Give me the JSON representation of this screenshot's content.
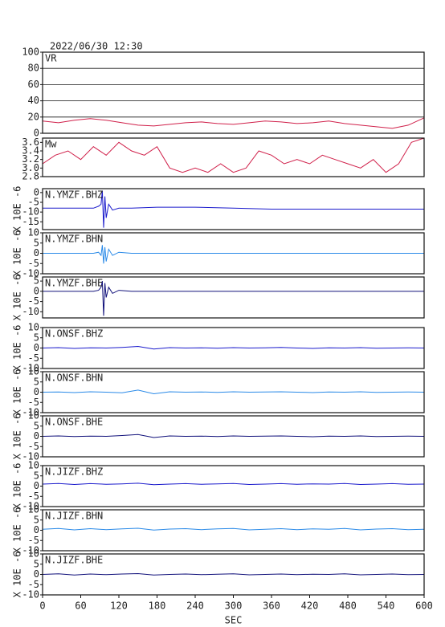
{
  "chart_data": [
    {
      "type": "line",
      "title": "2022/06/30 12:30",
      "xlim": [
        0,
        600
      ],
      "ylim": [
        0,
        100
      ],
      "yticks": [
        0,
        20,
        40,
        60,
        80,
        100
      ],
      "grid": true,
      "x": [
        0,
        25,
        50,
        75,
        100,
        125,
        150,
        175,
        200,
        225,
        250,
        275,
        300,
        325,
        350,
        375,
        400,
        425,
        450,
        475,
        500,
        525,
        550,
        575,
        600
      ],
      "series": [
        {
          "name": "VR",
          "color": "#d0204a",
          "values": [
            15,
            13,
            16,
            18,
            16,
            13,
            10,
            9,
            11,
            13,
            14,
            12,
            11,
            13,
            15,
            14,
            12,
            13,
            15,
            12,
            10,
            8,
            6,
            10,
            19
          ]
        }
      ]
    },
    {
      "type": "line",
      "xlim": [
        0,
        600
      ],
      "ylim": [
        2.8,
        3.7
      ],
      "yticks": [
        2.8,
        {
          "value": 3,
          "label": "3.0"
        },
        3.2,
        3.4,
        3.6
      ],
      "x": [
        0,
        20,
        40,
        60,
        80,
        100,
        120,
        140,
        160,
        180,
        200,
        220,
        240,
        260,
        280,
        300,
        320,
        340,
        360,
        380,
        400,
        420,
        440,
        460,
        480,
        500,
        520,
        540,
        560,
        580,
        600
      ],
      "series": [
        {
          "name": "Mw",
          "color": "#d0204a",
          "values": [
            3.1,
            3.3,
            3.4,
            3.2,
            3.5,
            3.3,
            3.6,
            3.4,
            3.3,
            3.5,
            3.0,
            2.9,
            3.0,
            2.9,
            3.1,
            2.9,
            3.0,
            3.4,
            3.3,
            3.1,
            3.2,
            3.1,
            3.3,
            3.2,
            3.1,
            3.0,
            3.2,
            2.9,
            3.1,
            3.6,
            3.7
          ]
        }
      ]
    },
    {
      "type": "line",
      "xlim": [
        0,
        600
      ],
      "ylim": [
        -19,
        2
      ],
      "yticks": [
        0,
        -5,
        -10,
        -15
      ],
      "ylabel": "X 10E -6",
      "x": [
        0,
        30,
        60,
        80,
        88,
        92,
        94,
        96,
        98,
        100,
        104,
        110,
        120,
        140,
        180,
        240,
        300,
        360,
        420,
        480,
        540,
        600
      ],
      "series": [
        {
          "name": "N.YMZF.BHZ",
          "color": "#1a1acc",
          "values": [
            -8,
            -8,
            -8,
            -8,
            -7,
            -6,
            1,
            -18,
            -2,
            -13,
            -6,
            -9,
            -8,
            -8,
            -7.5,
            -7.5,
            -8,
            -8.5,
            -8.5,
            -8.5,
            -8.5,
            -8.5
          ]
        }
      ]
    },
    {
      "type": "line",
      "xlim": [
        0,
        600
      ],
      "ylim": [
        -10,
        10
      ],
      "yticks": [
        10,
        5,
        0,
        -5,
        -10
      ],
      "ylabel": "X 10E -6",
      "x": [
        0,
        30,
        60,
        80,
        88,
        92,
        94,
        96,
        98,
        100,
        104,
        110,
        120,
        140,
        180,
        240,
        300,
        360,
        420,
        480,
        540,
        600
      ],
      "series": [
        {
          "name": "N.YMZF.BHN",
          "color": "#2a8ae8",
          "values": [
            0,
            0,
            0,
            0,
            0.5,
            -1,
            4,
            -5,
            3,
            -4,
            2,
            -1,
            0.5,
            0,
            0,
            0,
            0,
            0,
            0,
            0,
            0,
            0
          ]
        }
      ]
    },
    {
      "type": "line",
      "xlim": [
        0,
        600
      ],
      "ylim": [
        -13,
        7
      ],
      "yticks": [
        5,
        0,
        -5,
        -10
      ],
      "ylabel": "X 10E -6",
      "x": [
        0,
        30,
        60,
        80,
        88,
        92,
        94,
        96,
        98,
        100,
        104,
        110,
        120,
        140,
        180,
        240,
        300,
        360,
        420,
        480,
        540,
        600
      ],
      "series": [
        {
          "name": "N.YMZF.BHE",
          "color": "#10107a",
          "values": [
            0,
            0,
            0,
            0,
            0.5,
            2,
            5,
            -12,
            4,
            -3,
            2,
            -1,
            0.5,
            0,
            0,
            0,
            0,
            0,
            0,
            0,
            0,
            0
          ]
        }
      ]
    },
    {
      "type": "line",
      "xlim": [
        0,
        600
      ],
      "ylim": [
        -10,
        10
      ],
      "yticks": [
        10,
        5,
        0,
        -5,
        -10
      ],
      "ylabel": "X 10E -6",
      "x": [
        0,
        25,
        50,
        75,
        100,
        125,
        150,
        175,
        200,
        225,
        250,
        275,
        300,
        325,
        350,
        375,
        400,
        425,
        450,
        475,
        500,
        525,
        550,
        575,
        600
      ],
      "series": [
        {
          "name": "N.ONSF.BHZ",
          "color": "#1a1acc",
          "values": [
            0,
            0.2,
            -0.2,
            0.1,
            0,
            0.3,
            0.8,
            -0.5,
            0.2,
            0,
            0.1,
            -0.1,
            0.2,
            0,
            0.1,
            0.3,
            0,
            -0.2,
            0.1,
            0,
            0.2,
            -0.1,
            0,
            0.1,
            0
          ]
        }
      ]
    },
    {
      "type": "line",
      "xlim": [
        0,
        600
      ],
      "ylim": [
        -10,
        10
      ],
      "yticks": [
        10,
        5,
        0,
        -5,
        -10
      ],
      "ylabel": "X 10E -6",
      "x": [
        0,
        25,
        50,
        75,
        100,
        125,
        150,
        175,
        200,
        225,
        250,
        275,
        300,
        325,
        350,
        375,
        400,
        425,
        450,
        475,
        500,
        525,
        550,
        575,
        600
      ],
      "series": [
        {
          "name": "N.ONSF.BHN",
          "color": "#2a8ae8",
          "values": [
            0,
            0.1,
            -0.2,
            0.2,
            0,
            -0.3,
            1,
            -0.8,
            0.2,
            0,
            0.1,
            -0.1,
            0.2,
            0,
            0.1,
            0.2,
            0,
            -0.2,
            0.1,
            0,
            0.2,
            -0.1,
            0,
            0.1,
            0
          ]
        }
      ]
    },
    {
      "type": "line",
      "xlim": [
        0,
        600
      ],
      "ylim": [
        -10,
        10
      ],
      "yticks": [
        10,
        5,
        0,
        -5,
        -10
      ],
      "ylabel": "X 10E -6",
      "x": [
        0,
        25,
        50,
        75,
        100,
        125,
        150,
        175,
        200,
        225,
        250,
        275,
        300,
        325,
        350,
        375,
        400,
        425,
        450,
        475,
        500,
        525,
        550,
        575,
        600
      ],
      "series": [
        {
          "name": "N.ONSF.BHE",
          "color": "#10107a",
          "values": [
            0,
            0.2,
            -0.1,
            0.1,
            0,
            0.4,
            0.9,
            -0.6,
            0.2,
            0,
            0.1,
            -0.1,
            0.2,
            0,
            0.1,
            0.2,
            0,
            -0.2,
            0.1,
            0,
            0.2,
            -0.1,
            0,
            0.1,
            0
          ]
        }
      ]
    },
    {
      "type": "line",
      "xlim": [
        0,
        600
      ],
      "ylim": [
        -10,
        10
      ],
      "yticks": [
        10,
        5,
        0,
        -5,
        -10
      ],
      "ylabel": "X 10E -6",
      "x": [
        0,
        25,
        50,
        75,
        100,
        125,
        150,
        175,
        200,
        225,
        250,
        275,
        300,
        325,
        350,
        375,
        400,
        425,
        450,
        475,
        500,
        525,
        550,
        575,
        600
      ],
      "series": [
        {
          "name": "N.JIZF.BHZ",
          "color": "#1a1acc",
          "values": [
            1,
            1.3,
            0.8,
            1.2,
            0.9,
            1.1,
            1.4,
            0.7,
            1,
            1.2,
            0.9,
            1.1,
            1.3,
            0.8,
            1,
            1.2,
            0.9,
            1.1,
            1,
            1.3,
            0.8,
            1,
            1.2,
            0.9,
            1
          ]
        }
      ]
    },
    {
      "type": "line",
      "xlim": [
        0,
        600
      ],
      "ylim": [
        -10,
        10
      ],
      "yticks": [
        10,
        5,
        0,
        -5,
        -10
      ],
      "ylabel": "X 10E -6",
      "x": [
        0,
        25,
        50,
        75,
        100,
        125,
        150,
        175,
        200,
        225,
        250,
        275,
        300,
        325,
        350,
        375,
        400,
        425,
        450,
        475,
        500,
        525,
        550,
        575,
        600
      ],
      "series": [
        {
          "name": "N.JIZF.BHN",
          "color": "#2a8ae8",
          "values": [
            0.5,
            0.9,
            0.2,
            0.8,
            0.3,
            0.7,
            1,
            0.1,
            0.6,
            0.8,
            0.3,
            0.7,
            0.9,
            0.2,
            0.5,
            0.8,
            0.3,
            0.7,
            0.5,
            0.9,
            0.2,
            0.6,
            0.8,
            0.3,
            0.5
          ]
        }
      ]
    },
    {
      "type": "line",
      "xlim": [
        0,
        600
      ],
      "ylim": [
        -10,
        10
      ],
      "yticks": [
        10,
        5,
        0,
        -5,
        -10
      ],
      "ylabel": "X 10E -6",
      "xticks": [
        0,
        60,
        120,
        180,
        240,
        300,
        360,
        420,
        480,
        540,
        600
      ],
      "xlabel": "SEC",
      "x": [
        0,
        25,
        50,
        75,
        100,
        125,
        150,
        175,
        200,
        225,
        250,
        275,
        300,
        325,
        350,
        375,
        400,
        425,
        450,
        475,
        500,
        525,
        550,
        575,
        600
      ],
      "series": [
        {
          "name": "N.JIZF.BHE",
          "color": "#10107a",
          "values": [
            0,
            0.3,
            -0.3,
            0.2,
            -0.1,
            0.2,
            0.4,
            -0.3,
            0,
            0.2,
            -0.1,
            0.1,
            0.3,
            -0.2,
            0,
            0.2,
            -0.1,
            0.1,
            0,
            0.3,
            -0.2,
            0,
            0.2,
            -0.1,
            0
          ]
        }
      ]
    }
  ]
}
